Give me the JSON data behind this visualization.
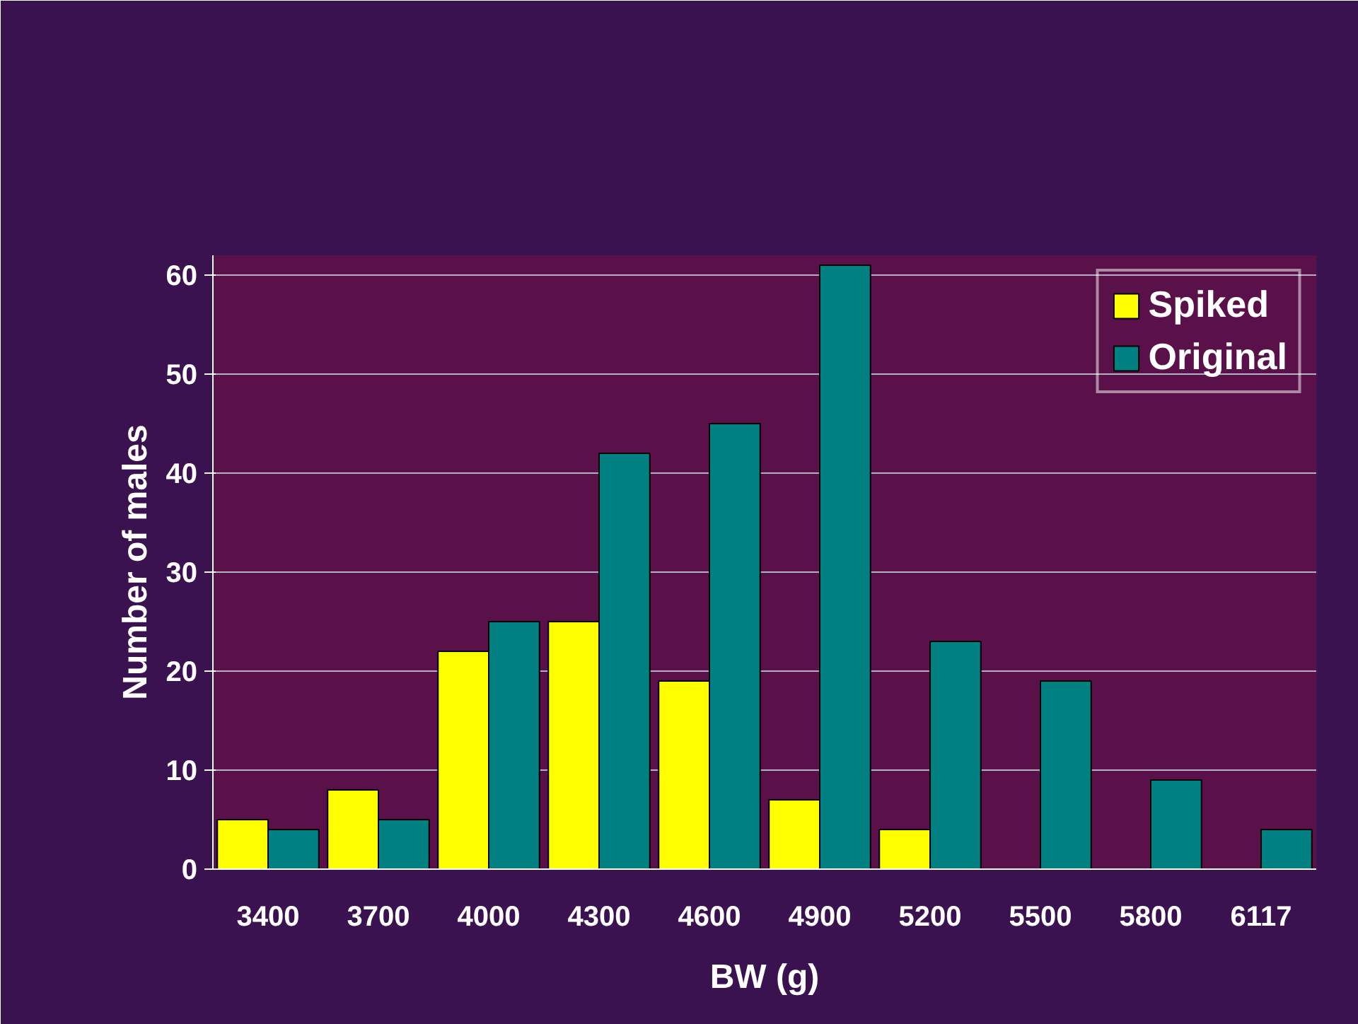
{
  "chart_data": {
    "type": "bar",
    "xlabel": "BW (g)",
    "ylabel": "Number of males",
    "categories": [
      "3400",
      "3700",
      "4000",
      "4300",
      "4600",
      "4900",
      "5200",
      "5500",
      "5800",
      "6117"
    ],
    "series": [
      {
        "name": "Spiked",
        "color": "#ffff00",
        "values": [
          5,
          8,
          22,
          25,
          19,
          7,
          4,
          null,
          null,
          null
        ]
      },
      {
        "name": "Original",
        "color": "#008080",
        "values": [
          4,
          5,
          25,
          42,
          45,
          61,
          23,
          19,
          9,
          4
        ]
      }
    ],
    "ylim": [
      0,
      62
    ],
    "yticks": [
      0,
      10,
      20,
      30,
      40,
      50,
      60
    ],
    "grid": "y",
    "legend": "top right"
  }
}
